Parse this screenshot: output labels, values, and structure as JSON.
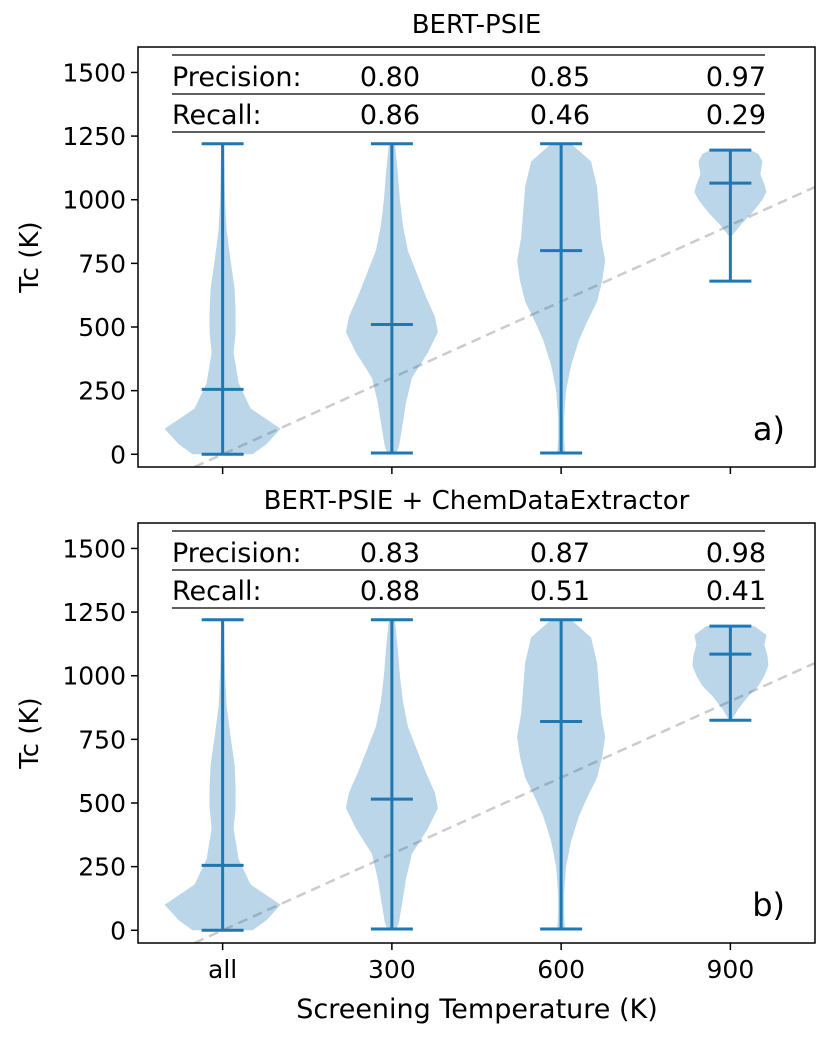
{
  "figure": {
    "xlabel": "Screening Temperature (K)"
  },
  "chart_data": [
    {
      "type": "violin",
      "title": "BERT-PSIE",
      "panel_label": "a)",
      "ylabel": "Tc (K)",
      "ylim": [
        -50,
        1600
      ],
      "yticks": [
        0,
        250,
        500,
        750,
        1000,
        1250,
        1500
      ],
      "categories": [
        "all",
        "300",
        "600",
        "900"
      ],
      "category_positions": [
        0,
        300,
        600,
        900
      ],
      "xlim": [
        -150,
        1050
      ],
      "show_x_tick_labels": false,
      "medians": [
        255,
        510,
        800,
        1065
      ],
      "mins": [
        0,
        5,
        5,
        680
      ],
      "maxs": [
        1220,
        1220,
        1220,
        1195
      ],
      "metrics": {
        "precision_label": "Precision:",
        "recall_label": "Recall:",
        "precision": [
          "0.80",
          "0.85",
          "0.97"
        ],
        "recall": [
          "0.86",
          "0.46",
          "0.29"
        ]
      },
      "reference_line": {
        "style": "dashed",
        "from": [
          -50,
          -50
        ],
        "to": [
          1050,
          1050
        ]
      }
    },
    {
      "type": "violin",
      "title": "BERT-PSIE + ChemDataExtractor",
      "panel_label": "b)",
      "ylabel": "Tc (K)",
      "ylim": [
        -50,
        1600
      ],
      "yticks": [
        0,
        250,
        500,
        750,
        1000,
        1250,
        1500
      ],
      "categories": [
        "all",
        "300",
        "600",
        "900"
      ],
      "category_positions": [
        0,
        300,
        600,
        900
      ],
      "xlim": [
        -150,
        1050
      ],
      "show_x_tick_labels": true,
      "medians": [
        255,
        515,
        820,
        1085
      ],
      "mins": [
        0,
        5,
        5,
        825
      ],
      "maxs": [
        1220,
        1220,
        1220,
        1195
      ],
      "metrics": {
        "precision_label": "Precision:",
        "recall_label": "Recall:",
        "precision": [
          "0.83",
          "0.87",
          "0.98"
        ],
        "recall": [
          "0.88",
          "0.51",
          "0.41"
        ]
      },
      "reference_line": {
        "style": "dashed",
        "from": [
          -50,
          -50
        ],
        "to": [
          1050,
          1050
        ]
      }
    }
  ]
}
